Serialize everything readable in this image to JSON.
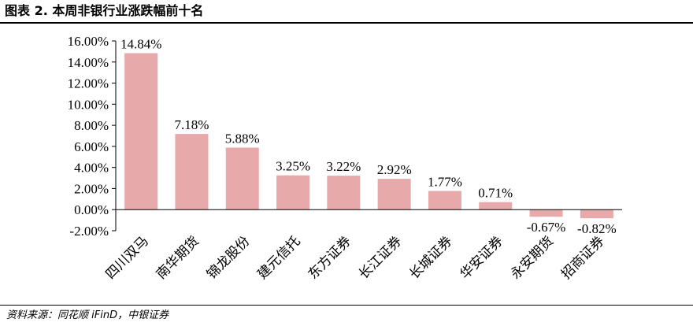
{
  "figure_title": "图表 2. 本周非银行业涨跌幅前十名",
  "source": "资料来源：同花顺 iFinD，中银证券",
  "chart_data": {
    "type": "bar",
    "title": "",
    "xlabel": "",
    "ylabel": "",
    "categories": [
      "四川双马",
      "南华期货",
      "锦龙股份",
      "建元信托",
      "东方证券",
      "长江证券",
      "长城证券",
      "华安证券",
      "永安期货",
      "招商证券"
    ],
    "values": [
      14.84,
      7.18,
      5.88,
      3.25,
      3.22,
      2.92,
      1.77,
      0.71,
      -0.67,
      -0.82
    ],
    "data_labels": [
      "14.84%",
      "7.18%",
      "5.88%",
      "3.25%",
      "3.22%",
      "2.92%",
      "1.77%",
      "0.71%",
      "-0.67%",
      "-0.82%"
    ],
    "ylim": [
      -2,
      16
    ],
    "yticks": [
      -2,
      0,
      2,
      4,
      6,
      8,
      10,
      12,
      14,
      16
    ],
    "ytick_labels": [
      "-2.00%",
      "0.00%",
      "2.00%",
      "4.00%",
      "6.00%",
      "8.00%",
      "10.00%",
      "12.00%",
      "14.00%",
      "16.00%"
    ],
    "bar_color": "#E8A9AA",
    "grid": false,
    "legend": "none"
  }
}
